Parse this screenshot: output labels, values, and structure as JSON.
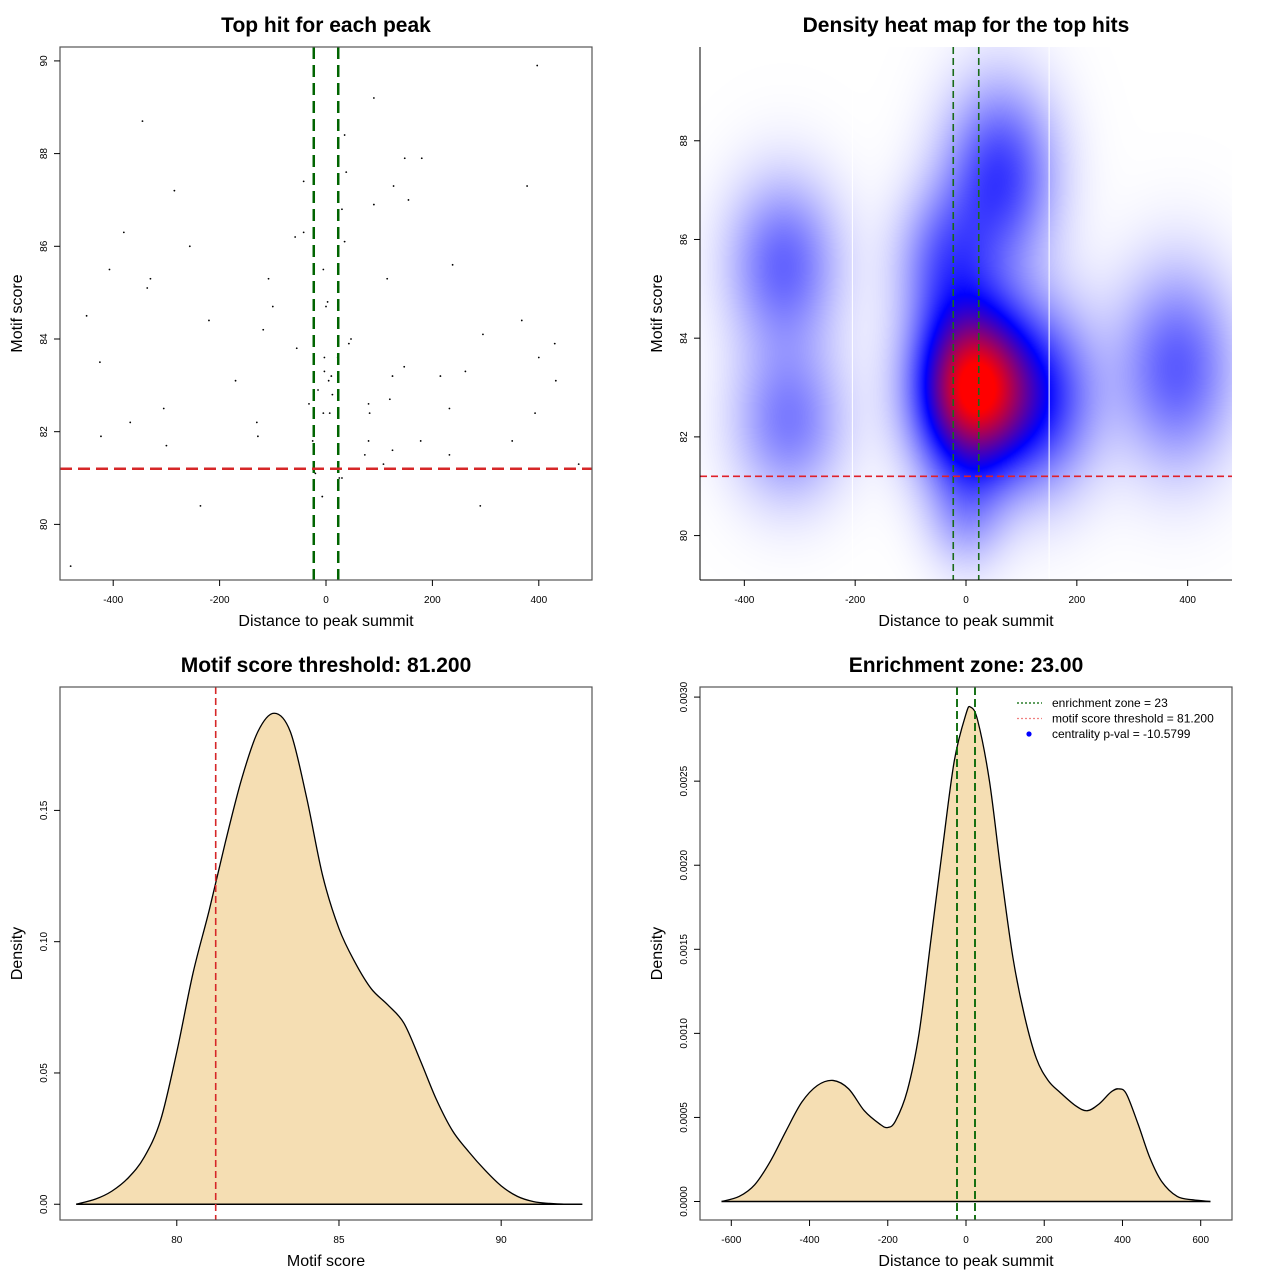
{
  "chart_data": [
    {
      "id": "scatter",
      "type": "scatter",
      "title": "Top hit for each peak",
      "xlabel": "Distance to peak summit",
      "ylabel": "Motif score",
      "xlim": [
        -500,
        500
      ],
      "ylim": [
        78.8,
        90.3
      ],
      "xticks": [
        -400,
        -200,
        0,
        200,
        400
      ],
      "yticks": [
        80,
        82,
        84,
        86,
        88,
        90
      ],
      "vlines": [
        -23,
        23
      ],
      "hline": 81.2,
      "vline_color": "#006400",
      "hline_color": "#d62728",
      "points": [
        [
          -480,
          79.1
        ],
        [
          -450,
          84.5
        ],
        [
          -425,
          83.5
        ],
        [
          -423,
          81.9
        ],
        [
          -407,
          85.5
        ],
        [
          -380,
          86.3
        ],
        [
          -368,
          82.2
        ],
        [
          -345,
          88.7
        ],
        [
          -336,
          85.1
        ],
        [
          -330,
          85.3
        ],
        [
          -305,
          82.5
        ],
        [
          -300,
          81.7
        ],
        [
          -285,
          87.2
        ],
        [
          -256,
          86.0
        ],
        [
          -236,
          80.4
        ],
        [
          -220,
          84.4
        ],
        [
          -170,
          83.1
        ],
        [
          -130,
          82.2
        ],
        [
          -128,
          81.9
        ],
        [
          -118,
          84.2
        ],
        [
          -108,
          85.3
        ],
        [
          -100,
          84.7
        ],
        [
          -55,
          83.8
        ],
        [
          -58,
          86.2
        ],
        [
          -42,
          86.3
        ],
        [
          -42,
          87.4
        ],
        [
          -32,
          82.6
        ],
        [
          -25,
          81.8
        ],
        [
          -20,
          81.1
        ],
        [
          -15,
          82.9
        ],
        [
          -5,
          82.4
        ],
        [
          -7,
          80.6
        ],
        [
          -3,
          83.6
        ],
        [
          -3,
          83.3
        ],
        [
          -5,
          85.5
        ],
        [
          0,
          84.7
        ],
        [
          3,
          84.8
        ],
        [
          5,
          83.1
        ],
        [
          7,
          82.4
        ],
        [
          10,
          83.2
        ],
        [
          12,
          82.8
        ],
        [
          22,
          83.6
        ],
        [
          25,
          81.0
        ],
        [
          30,
          81.0
        ],
        [
          30,
          86.8
        ],
        [
          35,
          88.4
        ],
        [
          38,
          87.6
        ],
        [
          35,
          86.1
        ],
        [
          43,
          83.9
        ],
        [
          47,
          84.0
        ],
        [
          73,
          81.5
        ],
        [
          80,
          81.8
        ],
        [
          80,
          82.6
        ],
        [
          82,
          82.4
        ],
        [
          90,
          86.9
        ],
        [
          90,
          89.2
        ],
        [
          108,
          81.3
        ],
        [
          115,
          85.3
        ],
        [
          120,
          82.7
        ],
        [
          125,
          81.6
        ],
        [
          125,
          83.2
        ],
        [
          127,
          87.3
        ],
        [
          147,
          83.4
        ],
        [
          148,
          87.9
        ],
        [
          155,
          87.0
        ],
        [
          178,
          81.8
        ],
        [
          180,
          87.9
        ],
        [
          215,
          83.2
        ],
        [
          232,
          82.5
        ],
        [
          232,
          81.5
        ],
        [
          238,
          85.6
        ],
        [
          262,
          83.3
        ],
        [
          290,
          80.4
        ],
        [
          295,
          84.1
        ],
        [
          350,
          81.8
        ],
        [
          368,
          84.4
        ],
        [
          378,
          87.3
        ],
        [
          393,
          82.4
        ],
        [
          397,
          89.9
        ],
        [
          400,
          83.6
        ],
        [
          430,
          83.9
        ],
        [
          432,
          83.1
        ],
        [
          475,
          81.3
        ]
      ]
    },
    {
      "id": "heatmap",
      "type": "heatmap",
      "title": "Density heat map for the top hits",
      "xlabel": "Distance to peak summit",
      "ylabel": "Motif score",
      "xlim": [
        -480,
        480
      ],
      "ylim": [
        79.1,
        89.9
      ],
      "xticks": [
        -400,
        -200,
        0,
        200,
        400
      ],
      "yticks": [
        80,
        82,
        84,
        86,
        88
      ],
      "vlines": [
        -23,
        23
      ],
      "hline": 81.2,
      "white_vlines": [
        -205,
        150
      ],
      "colorscale": [
        "#ffffff",
        "#0000ff",
        "#ff0000"
      ],
      "kernels": [
        {
          "x": 10,
          "y": 83.0,
          "sx": 70,
          "sy": 1.2,
          "w": 1.0
        },
        {
          "x": 60,
          "y": 87.3,
          "sx": 70,
          "sy": 1.3,
          "w": 0.38
        },
        {
          "x": 140,
          "y": 82.8,
          "sx": 70,
          "sy": 1.3,
          "w": 0.35
        },
        {
          "x": -330,
          "y": 85.5,
          "sx": 70,
          "sy": 1.2,
          "w": 0.3
        },
        {
          "x": -320,
          "y": 82.3,
          "sx": 70,
          "sy": 1.1,
          "w": 0.25
        },
        {
          "x": 380,
          "y": 83.4,
          "sx": 75,
          "sy": 1.4,
          "w": 0.32
        },
        {
          "x": -40,
          "y": 85.6,
          "sx": 60,
          "sy": 1.0,
          "w": 0.25
        },
        {
          "x": 0,
          "y": 80.4,
          "sx": 50,
          "sy": 0.8,
          "w": 0.15
        }
      ]
    },
    {
      "id": "score-density",
      "type": "area",
      "title": "Motif score threshold: 81.200",
      "xlabel": "Motif score",
      "ylabel": "Density",
      "xlim": [
        76.4,
        92.8
      ],
      "ylim": [
        -0.006,
        0.197
      ],
      "xticks": [
        80,
        85,
        90
      ],
      "yticks": [
        0.0,
        0.05,
        0.1,
        0.15
      ],
      "ytick_labels": [
        "0.00",
        "0.05",
        "0.10",
        "0.15"
      ],
      "vline": 81.2,
      "vline_color": "#d62728",
      "fill": "#f5deb3",
      "x": [
        76.9,
        77.5,
        78.0,
        78.5,
        79.0,
        79.5,
        80.0,
        80.5,
        81.0,
        81.5,
        82.0,
        82.5,
        83.0,
        83.5,
        84.0,
        84.5,
        85.0,
        85.5,
        86.0,
        86.5,
        87.0,
        87.5,
        88.0,
        88.5,
        89.0,
        89.5,
        90.0,
        90.5,
        91.0,
        91.5,
        92.0,
        92.5
      ],
      "y": [
        0.0,
        0.002,
        0.005,
        0.01,
        0.018,
        0.032,
        0.058,
        0.088,
        0.112,
        0.138,
        0.162,
        0.18,
        0.187,
        0.18,
        0.155,
        0.125,
        0.105,
        0.092,
        0.082,
        0.076,
        0.069,
        0.055,
        0.04,
        0.028,
        0.02,
        0.013,
        0.007,
        0.003,
        0.001,
        0.0003,
        0.0,
        0.0
      ]
    },
    {
      "id": "distance-density",
      "type": "area",
      "title": "Enrichment zone: 23.00",
      "xlabel": "Distance to peak summit",
      "ylabel": "Density",
      "xlim": [
        -680,
        680
      ],
      "ylim": [
        -0.00011,
        0.00306
      ],
      "xticks": [
        -600,
        -400,
        -200,
        0,
        200,
        400,
        600
      ],
      "yticks": [
        0.0,
        0.0005,
        0.001,
        0.0015,
        0.002,
        0.0025,
        0.003
      ],
      "ytick_labels": [
        "0.0000",
        "0.0005",
        "0.0010",
        "0.0015",
        "0.0020",
        "0.0025",
        "0.0030"
      ],
      "vlines": [
        -23,
        23
      ],
      "vline_color": "#006400",
      "fill": "#f5deb3",
      "x": [
        -625,
        -580,
        -540,
        -500,
        -460,
        -420,
        -380,
        -340,
        -300,
        -260,
        -220,
        -200,
        -180,
        -150,
        -120,
        -90,
        -60,
        -30,
        0,
        12,
        30,
        60,
        90,
        120,
        150,
        180,
        210,
        240,
        280,
        310,
        340,
        370,
        390,
        410,
        440,
        470,
        500,
        540,
        580,
        625
      ],
      "y": [
        0.0,
        3e-05,
        0.0001,
        0.00024,
        0.00042,
        0.00059,
        0.00069,
        0.00072,
        0.00067,
        0.00054,
        0.00046,
        0.00044,
        0.00048,
        0.00066,
        0.001,
        0.00155,
        0.0021,
        0.00262,
        0.0029,
        0.00294,
        0.00286,
        0.0025,
        0.00195,
        0.00145,
        0.0011,
        0.00085,
        0.00072,
        0.00065,
        0.00057,
        0.00054,
        0.00058,
        0.00065,
        0.00067,
        0.00064,
        0.00046,
        0.00026,
        0.00012,
        3e-05,
        1e-05,
        0.0
      ],
      "legend": {
        "position": "top-right",
        "entries": [
          {
            "label": "enrichment zone = 23",
            "kind": "dotted-line",
            "color": "#006400"
          },
          {
            "label": "motif score threshold = 81.200",
            "kind": "dotted-line",
            "color": "#f08080"
          },
          {
            "label": "centrality p-val = -10.5799",
            "kind": "point",
            "color": "#0000ff"
          }
        ]
      }
    }
  ]
}
